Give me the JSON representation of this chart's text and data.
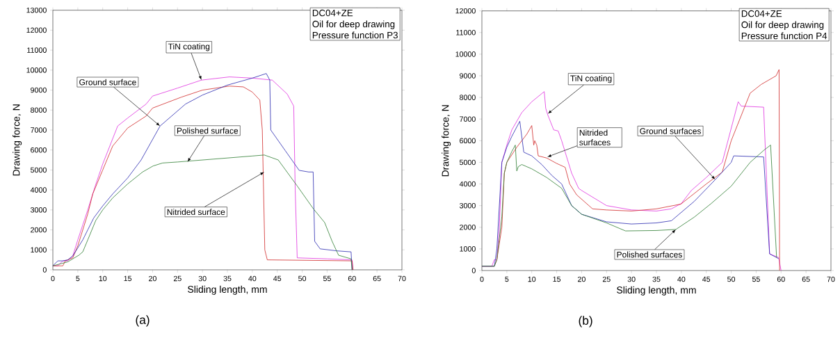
{
  "chart_data": [
    {
      "type": "line",
      "title": "(a)",
      "xlabel": "Sliding length, mm",
      "ylabel": "Drawing force, N",
      "xlim": [
        0,
        70
      ],
      "xticks": [
        0,
        5,
        10,
        15,
        20,
        25,
        30,
        35,
        40,
        45,
        50,
        55,
        60,
        65,
        70
      ],
      "ylim": [
        0,
        13000
      ],
      "yticks": [
        0,
        1000,
        2000,
        3000,
        4000,
        5000,
        6000,
        7000,
        8000,
        9000,
        10000,
        11000,
        12000,
        13000
      ],
      "series": [
        {
          "color": "#e030e0",
          "x": [
            0,
            1,
            2,
            3,
            4,
            5,
            7,
            8.5,
            10,
            13,
            15,
            18.7,
            20,
            25,
            29.8,
            35.4,
            40,
            44,
            47,
            48.3,
            48.6,
            49,
            55,
            60,
            60.2
          ],
          "values": [
            200,
            200,
            450,
            450,
            700,
            1500,
            3000,
            4200,
            5300,
            7200,
            7600,
            8300,
            8700,
            9100,
            9500,
            9660,
            9600,
            9500,
            8800,
            8200,
            4000,
            600,
            550,
            500,
            0
          ]
        },
        {
          "color": "#d02828",
          "x": [
            0,
            2,
            2.5,
            4,
            5,
            7,
            8,
            10,
            12,
            15,
            18.7,
            20,
            25.7,
            30,
            35.4,
            38.2,
            40,
            41.5,
            42,
            42.5,
            43,
            60,
            60.2
          ],
          "values": [
            200,
            200,
            450,
            600,
            1200,
            2800,
            3800,
            5000,
            6200,
            7100,
            7700,
            8100,
            8640,
            9000,
            9200,
            9160,
            8900,
            8500,
            7000,
            1000,
            500,
            450,
            0
          ]
        },
        {
          "color": "#2828b0",
          "x": [
            0,
            1,
            2,
            3,
            4,
            5,
            6,
            7,
            8.2,
            10,
            12,
            15,
            17.7,
            21.5,
            26.6,
            30,
            35,
            40,
            42.8,
            43.5,
            43.7,
            46.6,
            49.4,
            51.3,
            52.2,
            52.5,
            53.6,
            57,
            59.8,
            60
          ],
          "values": [
            200,
            450,
            450,
            500,
            700,
            1100,
            1500,
            2000,
            2600,
            3200,
            3800,
            4600,
            5500,
            7200,
            8300,
            8750,
            9250,
            9600,
            9830,
            9500,
            7000,
            5970,
            4980,
            4900,
            4900,
            1430,
            1050,
            950,
            900,
            0
          ]
        },
        {
          "color": "#2e7d32",
          "x": [
            0,
            3,
            5.2,
            6,
            7,
            8.6,
            10,
            12,
            15,
            18,
            20.1,
            22,
            25,
            30,
            35,
            40,
            42.4,
            45.2,
            49,
            52.2,
            54.5,
            56,
            57.3,
            59.8,
            60
          ],
          "values": [
            200,
            400,
            730,
            900,
            1500,
            2470,
            3000,
            3600,
            4300,
            4900,
            5200,
            5350,
            5400,
            5500,
            5600,
            5700,
            5750,
            5500,
            4200,
            3070,
            2370,
            1430,
            730,
            550,
            0
          ]
        }
      ],
      "annotations": [
        {
          "text": "TiN coating",
          "x": 29.8,
          "y": 9500
        },
        {
          "text": "Ground surface",
          "x": 21.5,
          "y": 7200
        },
        {
          "text": "Polished surface",
          "x": 27,
          "y": 5400
        },
        {
          "text": "Nitrided surface",
          "x": 42.4,
          "y": 4900
        },
        "DC04+ZE",
        "Oil for deep drawing",
        "Pressure function P3"
      ]
    },
    {
      "type": "line",
      "title": "(b)",
      "xlabel": "Sliding length, mm",
      "ylabel": "Drawing force, N",
      "xlim": [
        0,
        70
      ],
      "xticks": [
        0,
        5,
        10,
        15,
        20,
        25,
        30,
        35,
        40,
        45,
        50,
        55,
        60,
        65,
        70
      ],
      "ylim": [
        0,
        12000
      ],
      "yticks": [
        0,
        1000,
        2000,
        3000,
        4000,
        5000,
        6000,
        7000,
        8000,
        9000,
        10000,
        11000,
        12000
      ],
      "series": [
        {
          "color": "#e030e0",
          "x": [
            0,
            2,
            2.5,
            3,
            3.5,
            4,
            5,
            6,
            8,
            10,
            12.5,
            12.8,
            13.2,
            14.4,
            15.3,
            16,
            18,
            19.4,
            20,
            25,
            30,
            35,
            38,
            40,
            42,
            45,
            48.2,
            51.4,
            52,
            56.5,
            57.7,
            59.5,
            60
          ],
          "values": [
            200,
            200,
            500,
            500,
            2000,
            5000,
            5800,
            6500,
            7300,
            7800,
            8270,
            7500,
            7200,
            6500,
            6450,
            6000,
            4500,
            3800,
            3700,
            3000,
            2800,
            2750,
            2850,
            3100,
            3700,
            4300,
            5000,
            7800,
            7600,
            7550,
            770,
            600,
            0
          ]
        },
        {
          "color": "#d02828",
          "x": [
            0,
            2.5,
            3,
            4,
            4.5,
            5,
            7,
            9,
            10,
            10.4,
            10.6,
            11,
            11.3,
            13,
            15,
            16.7,
            17.6,
            19,
            22.2,
            25,
            30,
            35,
            39.9,
            45,
            48.2,
            50,
            53.8,
            56,
            59,
            59.6,
            59.7
          ],
          "values": [
            200,
            200,
            500,
            2000,
            4500,
            5000,
            5700,
            6300,
            6700,
            5800,
            6000,
            5800,
            5300,
            5200,
            4950,
            4770,
            4000,
            3500,
            2850,
            2800,
            2750,
            2850,
            3070,
            4000,
            4550,
            6000,
            8200,
            8600,
            9000,
            9290,
            0
          ]
        },
        {
          "color": "#2828b0",
          "x": [
            0,
            2.5,
            3,
            3.5,
            4,
            5,
            6,
            7.6,
            8.4,
            10,
            12,
            14,
            16,
            18,
            20,
            25,
            30,
            35,
            38,
            42.6,
            46.8,
            50,
            50.5,
            56.5,
            57.7,
            59.5
          ],
          "values": [
            200,
            200,
            1000,
            3000,
            5000,
            5700,
            6200,
            6900,
            5470,
            5300,
            4900,
            4400,
            4000,
            3000,
            2600,
            2250,
            2150,
            2200,
            2300,
            3200,
            4200,
            5000,
            5300,
            5250,
            770,
            550
          ]
        },
        {
          "color": "#2e7d32",
          "x": [
            0,
            2.5,
            3,
            4,
            4.5,
            5,
            6,
            6.7,
            7,
            7.3,
            8,
            10,
            13,
            16,
            18,
            20,
            25,
            28.8,
            35,
            38.9,
            42.6,
            46,
            50,
            53.8,
            56.5,
            57.9,
            59.1
          ],
          "values": [
            200,
            200,
            500,
            2500,
            4500,
            5000,
            5500,
            5800,
            4600,
            4800,
            4900,
            4700,
            4300,
            3800,
            3000,
            2600,
            2200,
            1830,
            1850,
            1900,
            2470,
            3100,
            3900,
            5000,
            5550,
            5800,
            600
          ]
        }
      ],
      "annotations": [
        {
          "text": "TiN coating",
          "x": 13.2,
          "y": 7240
        },
        {
          "text": "Nitrided surfaces",
          "x": 13.1,
          "y": 5250
        },
        {
          "text": "Ground surfaces",
          "x": 46.8,
          "y": 4200
        },
        {
          "text": "Polished surfaces",
          "x": 38.9,
          "y": 1900
        },
        "DC04+ZE",
        "Oil for deep drawing",
        "Pressure function P4"
      ]
    }
  ]
}
